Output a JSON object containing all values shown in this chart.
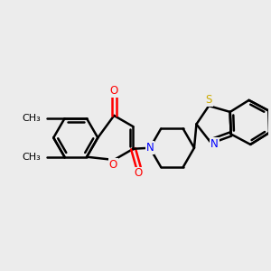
{
  "background_color": "#ececec",
  "bond_color": "#000000",
  "bond_width": 1.8,
  "figsize": [
    3.0,
    3.0
  ],
  "dpi": 100,
  "atom_colors": {
    "O": "#ff0000",
    "N": "#0000ff",
    "S": "#ccaa00",
    "C": "#000000"
  },
  "font_size": 8.5,
  "methyl_font_size": 8.0
}
